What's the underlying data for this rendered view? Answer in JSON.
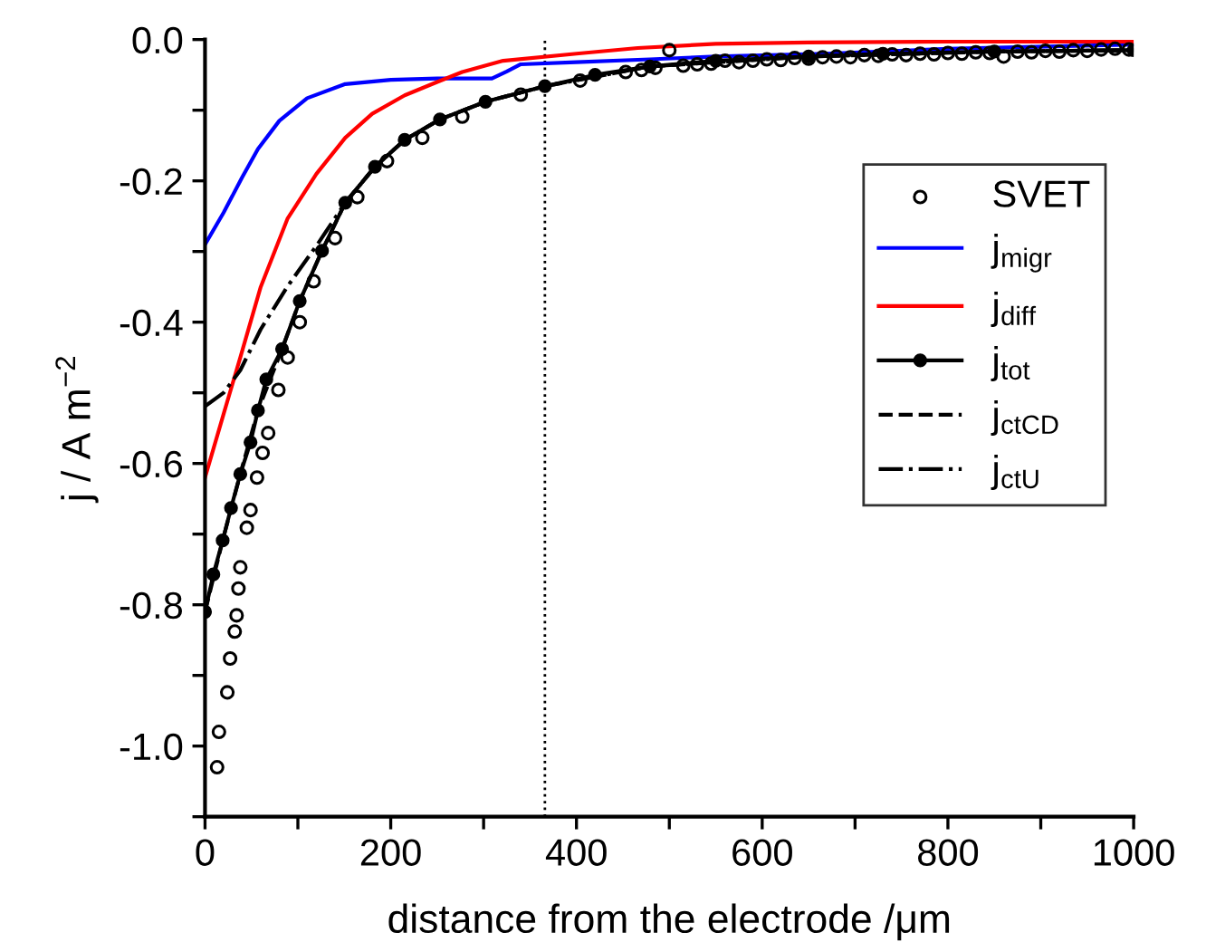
{
  "chart_data": {
    "type": "line",
    "xlabel": "distance from the electrode /μm",
    "ylabel": "j / A m$^{−2}$",
    "xlim": [
      0,
      1000
    ],
    "ylim": [
      -1.1,
      0.0
    ],
    "xticks": [
      0,
      {
        "value": 100,
        "label": null
      },
      200,
      {
        "value": 300,
        "label": null
      },
      400,
      {
        "value": 500,
        "label": null
      },
      600,
      {
        "value": 700,
        "label": null
      },
      800,
      {
        "value": 900,
        "label": null
      },
      1000
    ],
    "yticks": [
      {
        "value": -1.1,
        "label": null
      },
      {
        "value": -1.0,
        "label": "-1.0"
      },
      {
        "value": -0.9,
        "label": null
      },
      {
        "value": -0.8,
        "label": "-0.8"
      },
      {
        "value": -0.7,
        "label": null
      },
      {
        "value": -0.6,
        "label": "-0.6"
      },
      {
        "value": -0.5,
        "label": null
      },
      {
        "value": -0.4,
        "label": "-0.4"
      },
      {
        "value": -0.3,
        "label": null
      },
      {
        "value": -0.2,
        "label": "-0.2"
      },
      {
        "value": -0.1,
        "label": null
      },
      {
        "value": 0.0,
        "label": "0.0"
      }
    ],
    "grid": false,
    "legend": "right",
    "ref_lines": [
      {
        "axis": "x",
        "value": 366,
        "color": "#000000",
        "line_style": "dotted"
      }
    ],
    "series": [
      {
        "name": "SVET",
        "type": "scatter",
        "marker": "circle",
        "color": "#000000",
        "x": [
          13,
          15,
          24,
          27,
          32,
          34,
          36,
          38,
          45,
          49,
          56,
          62,
          68,
          79,
          89,
          102,
          117,
          140,
          164,
          196,
          234,
          277,
          340,
          404,
          453,
          470,
          485,
          500,
          515,
          530,
          545,
          560,
          575,
          590,
          605,
          620,
          635,
          650,
          665,
          680,
          695,
          710,
          725,
          740,
          755,
          770,
          785,
          800,
          815,
          830,
          845,
          860,
          875,
          890,
          905,
          920,
          935,
          950,
          965,
          980,
          995
        ],
        "values": [
          -1.03,
          -0.98,
          -0.924,
          -0.876,
          -0.838,
          -0.815,
          -0.777,
          -0.747,
          -0.691,
          -0.666,
          -0.62,
          -0.585,
          -0.557,
          -0.496,
          -0.45,
          -0.4,
          -0.342,
          -0.281,
          -0.223,
          -0.172,
          -0.139,
          -0.109,
          -0.078,
          -0.058,
          -0.046,
          -0.043,
          -0.04,
          -0.015,
          -0.037,
          -0.035,
          -0.034,
          -0.03,
          -0.032,
          -0.03,
          -0.028,
          -0.029,
          -0.026,
          -0.027,
          -0.025,
          -0.024,
          -0.025,
          -0.022,
          -0.023,
          -0.021,
          -0.022,
          -0.02,
          -0.021,
          -0.019,
          -0.02,
          -0.018,
          -0.019,
          -0.024,
          -0.017,
          -0.018,
          -0.016,
          -0.017,
          -0.015,
          -0.016,
          -0.014,
          -0.013,
          -0.014
        ]
      },
      {
        "name": "j$_{migr}$",
        "marker": "none",
        "line_style": "solid",
        "color": "#0000ff",
        "x": [
          0,
          20,
          40,
          57,
          80,
          110,
          151,
          200,
          250,
          309,
          325,
          340,
          400,
          479,
          550,
          668,
          800,
          1000
        ],
        "values": [
          -0.29,
          -0.245,
          -0.195,
          -0.155,
          -0.115,
          -0.083,
          -0.063,
          -0.057,
          -0.055,
          -0.055,
          -0.045,
          -0.035,
          -0.032,
          -0.028,
          -0.024,
          -0.02,
          -0.013,
          -0.007
        ]
      },
      {
        "name": "j$_{diff}$",
        "marker": "none",
        "line_style": "solid",
        "color": "#ff0000",
        "x": [
          0,
          20,
          38,
          60,
          89,
          120,
          151,
          180,
          215,
          250,
          277,
          321,
          400,
          466,
          550,
          650,
          800,
          1000
        ],
        "values": [
          -0.62,
          -0.53,
          -0.45,
          -0.35,
          -0.253,
          -0.19,
          -0.139,
          -0.105,
          -0.079,
          -0.06,
          -0.046,
          -0.03,
          -0.02,
          -0.012,
          -0.006,
          -0.004,
          -0.003,
          -0.003
        ]
      },
      {
        "name": "j$_{tot}$",
        "marker": "circle",
        "line_style": "solid",
        "color": "#000000",
        "x": [
          0,
          9,
          19,
          28,
          38,
          49,
          57,
          66,
          83,
          102,
          126,
          151,
          183,
          215,
          253,
          302,
          366,
          420,
          479,
          550,
          650,
          730,
          850,
          1000
        ],
        "values": [
          -0.81,
          -0.757,
          -0.709,
          -0.663,
          -0.615,
          -0.57,
          -0.525,
          -0.481,
          -0.438,
          -0.37,
          -0.299,
          -0.231,
          -0.18,
          -0.142,
          -0.113,
          -0.088,
          -0.066,
          -0.05,
          -0.038,
          -0.03,
          -0.024,
          -0.02,
          -0.017,
          -0.015
        ]
      },
      {
        "name": "j$_{ctCD}$",
        "marker": "none",
        "line_style": "dashed",
        "color": "#000000",
        "x": [
          0,
          19,
          38,
          57,
          83,
          102,
          126,
          151,
          183,
          215,
          253,
          302,
          366,
          479,
          650,
          850,
          1000
        ],
        "values": [
          -0.81,
          -0.709,
          -0.615,
          -0.525,
          -0.438,
          -0.37,
          -0.299,
          -0.231,
          -0.18,
          -0.142,
          -0.113,
          -0.088,
          -0.066,
          -0.038,
          -0.024,
          -0.017,
          -0.015
        ]
      },
      {
        "name": "j$_{ctU}$",
        "marker": "none",
        "line_style": "dashdot",
        "color": "#000000",
        "x": [
          0,
          20,
          38,
          60,
          89,
          121,
          151,
          183,
          215,
          253,
          302,
          366,
          479,
          650,
          850,
          1000
        ],
        "values": [
          -0.519,
          -0.5,
          -0.468,
          -0.41,
          -0.349,
          -0.29,
          -0.231,
          -0.18,
          -0.142,
          -0.113,
          -0.088,
          -0.066,
          -0.038,
          -0.024,
          -0.017,
          -0.015
        ]
      }
    ]
  }
}
